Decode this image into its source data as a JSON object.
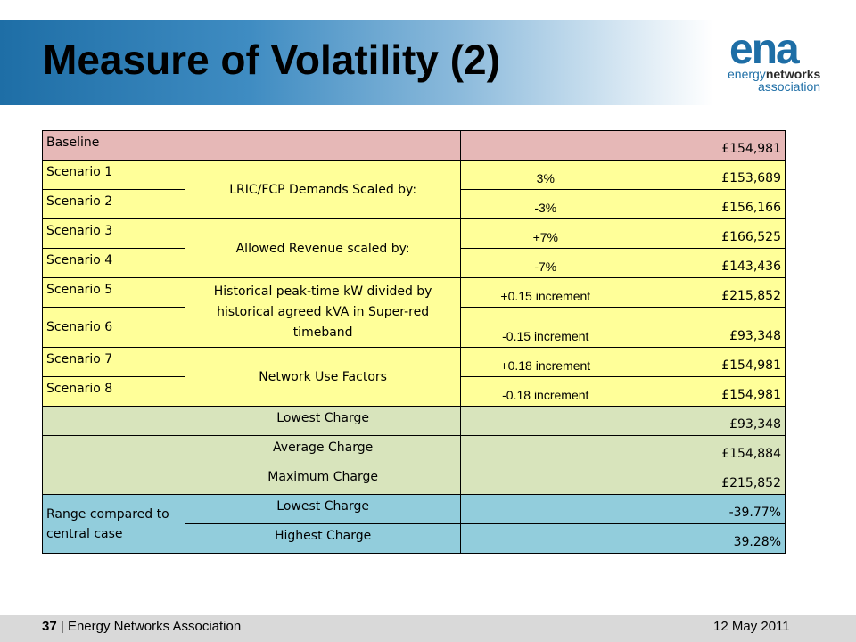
{
  "slide": {
    "title": "Measure of Volatility (2)",
    "logo": {
      "mark": "ena",
      "line1_a": "energy",
      "line1_b": "networks",
      "line2": "association"
    }
  },
  "table": {
    "rows": [
      {
        "c1": "Baseline",
        "c2": "",
        "c3": "",
        "c4": "£154,981"
      },
      {
        "c1": "Scenario 1",
        "c2": "LRIC/FCP Demands Scaled by:",
        "c3": "3%",
        "c4": "£153,689"
      },
      {
        "c1": "Scenario 2",
        "c3": "-3%",
        "c4": "£156,166"
      },
      {
        "c1": "Scenario 3",
        "c2": "Allowed Revenue scaled by:",
        "c3": "+7%",
        "c4": "£166,525"
      },
      {
        "c1": "Scenario 4",
        "c3": "-7%",
        "c4": "£143,436"
      },
      {
        "c1": "Scenario 5",
        "c2": "Historical peak-time kW divided by historical agreed kVA in Super-red timeband",
        "c3": "+0.15 increment",
        "c4": "£215,852"
      },
      {
        "c1": "Scenario 6",
        "c3": "-0.15 increment",
        "c4": "£93,348"
      },
      {
        "c1": "Scenario 7",
        "c2": "Network Use Factors",
        "c3": "+0.18 increment",
        "c4": "£154,981"
      },
      {
        "c1": "Scenario 8",
        "c3": "-0.18 increment",
        "c4": "£154,981"
      },
      {
        "c1": "",
        "c2": "Lowest Charge",
        "c3": "",
        "c4": "£93,348"
      },
      {
        "c1": "",
        "c2": "Average Charge",
        "c3": "",
        "c4": "£154,884"
      },
      {
        "c1": "",
        "c2": "Maximum Charge",
        "c3": "",
        "c4": "£215,852"
      },
      {
        "c1": "Range compared to central case",
        "c2": "Lowest Charge",
        "c3": "",
        "c4": "-39.77%"
      },
      {
        "c2": "Highest Charge",
        "c3": "",
        "c4": "39.28%"
      }
    ]
  },
  "footer": {
    "page_number": "37",
    "separator": "|",
    "organization": "Energy Networks Association",
    "date": "12 May 2011"
  },
  "colors": {
    "header_blue": "#1e6ea6",
    "baseline_row": "#e6b8b7",
    "scenario_rows": "#ffff99",
    "summary_rows": "#d8e4bc",
    "range_rows": "#92cddc"
  }
}
